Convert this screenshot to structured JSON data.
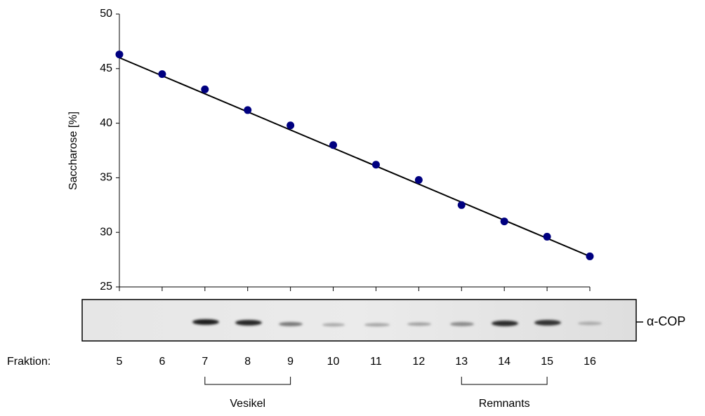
{
  "chart_data": {
    "type": "scatter",
    "y_label": "Saccharose [%]",
    "x": [
      5,
      6,
      7,
      8,
      9,
      10,
      11,
      12,
      13,
      14,
      15,
      16
    ],
    "series": [
      {
        "color": "#000080",
        "values": [
          46.3,
          44.5,
          43.1,
          41.2,
          39.8,
          38.0,
          36.2,
          34.8,
          32.5,
          31.0,
          29.6,
          27.8
        ]
      }
    ],
    "fit": {
      "color": "#000000",
      "x": [
        5,
        16
      ],
      "values": [
        46.0,
        27.8
      ]
    },
    "xlim": [
      5,
      16
    ],
    "xticks": [
      5,
      6,
      7,
      8,
      9,
      10,
      11,
      12,
      13,
      14,
      15,
      16
    ],
    "ylim": [
      25,
      50
    ],
    "yticks": [
      25,
      30,
      35,
      40,
      45,
      50
    ],
    "blot": {
      "label": "α-COP",
      "fraction_label": "Fraktion:",
      "groups": [
        {
          "label": "Vesikel",
          "from": 7,
          "to": 9
        },
        {
          "label": "Remnants",
          "from": 13,
          "to": 15
        }
      ]
    }
  }
}
